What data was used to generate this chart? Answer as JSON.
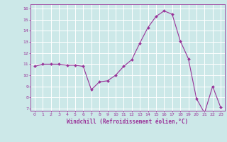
{
  "x": [
    0,
    1,
    2,
    3,
    4,
    5,
    6,
    7,
    8,
    9,
    10,
    11,
    12,
    13,
    14,
    15,
    16,
    17,
    18,
    19,
    20,
    21,
    22,
    23
  ],
  "y": [
    10.8,
    11.0,
    11.0,
    11.0,
    10.9,
    10.9,
    10.8,
    8.7,
    9.4,
    9.5,
    10.0,
    10.8,
    11.4,
    12.9,
    14.3,
    15.3,
    15.8,
    15.5,
    13.1,
    11.5,
    7.9,
    6.6,
    9.0,
    7.1
  ],
  "line_color": "#993399",
  "marker": "D",
  "marker_size": 2,
  "bg_color": "#cce8e8",
  "grid_color": "#ffffff",
  "xlabel": "Windchill (Refroidissement éolien,°C)",
  "xlabel_color": "#993399",
  "tick_color": "#993399",
  "label_color": "#993399",
  "ylim": [
    6.8,
    16.4
  ],
  "xlim": [
    -0.5,
    23.5
  ],
  "yticks": [
    7,
    8,
    9,
    10,
    11,
    12,
    13,
    14,
    15,
    16
  ],
  "xticks": [
    0,
    1,
    2,
    3,
    4,
    5,
    6,
    7,
    8,
    9,
    10,
    11,
    12,
    13,
    14,
    15,
    16,
    17,
    18,
    19,
    20,
    21,
    22,
    23
  ]
}
